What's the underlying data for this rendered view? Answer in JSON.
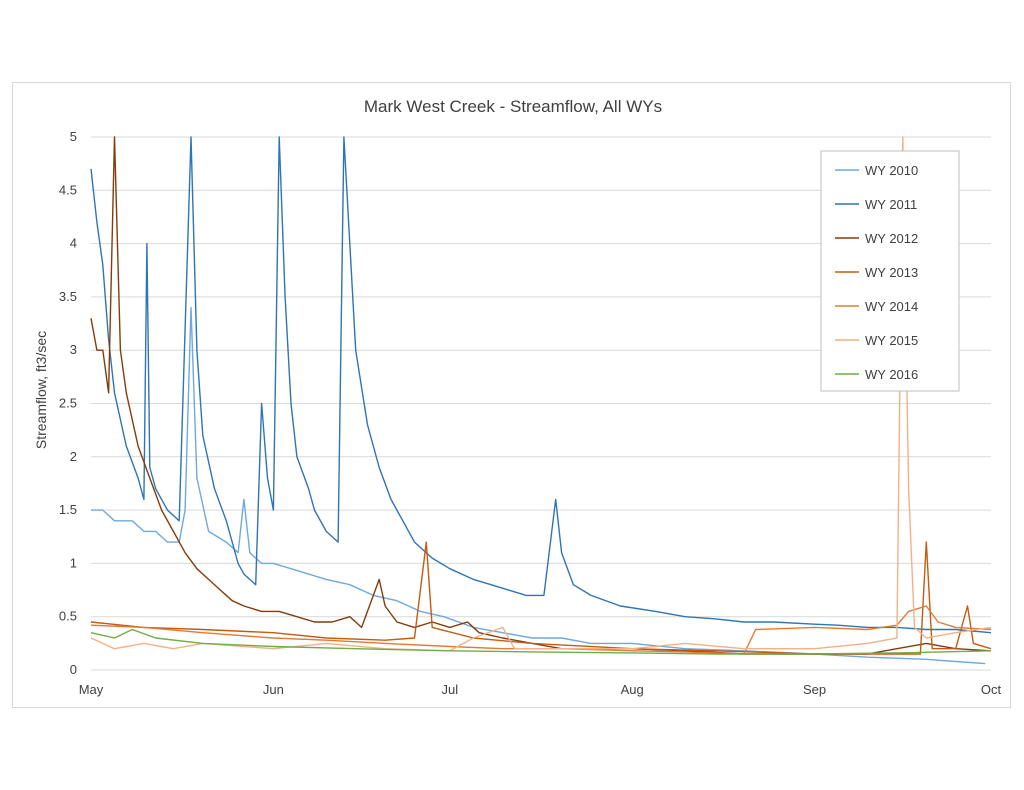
{
  "chart_data": {
    "type": "line",
    "title": "Mark West Creek - Streamflow, All WYs",
    "xlabel": "",
    "ylabel": "Streamflow, ft3/sec",
    "x_ticks": [
      "May",
      "Jun",
      "Jul",
      "Aug",
      "Sep",
      "Oct"
    ],
    "xlim": [
      "May 1",
      "Oct 1"
    ],
    "ylim": [
      0,
      5
    ],
    "y_ticks": [
      "0",
      "0.5",
      "1",
      "1.5",
      "2",
      "2.5",
      "3",
      "3.5",
      "4",
      "4.5",
      "5"
    ],
    "grid": true,
    "legend_position": "top-right",
    "series": [
      {
        "name": "WY 2010",
        "color": "#6fa8dc",
        "points": [
          [
            "May 1",
            1.5
          ],
          [
            "May 3",
            1.5
          ],
          [
            "May 5",
            1.4
          ],
          [
            "May 8",
            1.4
          ],
          [
            "May 10",
            1.3
          ],
          [
            "May 12",
            1.3
          ],
          [
            "May 14",
            1.2
          ],
          [
            "May 16",
            1.2
          ],
          [
            "May 17",
            1.5
          ],
          [
            "May 18",
            3.4
          ],
          [
            "May 19",
            1.8
          ],
          [
            "May 21",
            1.3
          ],
          [
            "May 24",
            1.2
          ],
          [
            "May 26",
            1.1
          ],
          [
            "May 27",
            1.6
          ],
          [
            "May 28",
            1.1
          ],
          [
            "May 30",
            1.0
          ],
          [
            "Jun 1",
            1.0
          ],
          [
            "Jun 4",
            0.95
          ],
          [
            "Jun 7",
            0.9
          ],
          [
            "Jun 10",
            0.85
          ],
          [
            "Jun 14",
            0.8
          ],
          [
            "Jun 18",
            0.7
          ],
          [
            "Jun 22",
            0.65
          ],
          [
            "Jun 26",
            0.55
          ],
          [
            "Jun 30",
            0.5
          ],
          [
            "Jul 5",
            0.4
          ],
          [
            "Jul 10",
            0.35
          ],
          [
            "Jul 15",
            0.3
          ],
          [
            "Jul 20",
            0.3
          ],
          [
            "Jul 25",
            0.25
          ],
          [
            "Aug 1",
            0.25
          ],
          [
            "Aug 10",
            0.2
          ],
          [
            "Aug 20",
            0.18
          ],
          [
            "Sep 1",
            0.15
          ],
          [
            "Sep 10",
            0.12
          ],
          [
            "Sep 20",
            0.1
          ],
          [
            "Sep 25",
            0.08
          ],
          [
            "Sep 30",
            0.06
          ]
        ]
      },
      {
        "name": "WY 2011",
        "color": "#2e75b6",
        "points": [
          [
            "May 1",
            4.7
          ],
          [
            "May 2",
            4.2
          ],
          [
            "May 3",
            3.8
          ],
          [
            "May 4",
            3.1
          ],
          [
            "May 5",
            2.6
          ],
          [
            "May 7",
            2.1
          ],
          [
            "May 9",
            1.8
          ],
          [
            "May 10",
            1.6
          ],
          [
            "May 10.5",
            4.0
          ],
          [
            "May 11",
            1.9
          ],
          [
            "May 12",
            1.7
          ],
          [
            "May 14",
            1.5
          ],
          [
            "May 16",
            1.4
          ],
          [
            "May 18",
            5.0
          ],
          [
            "May 19",
            3.0
          ],
          [
            "May 20",
            2.2
          ],
          [
            "May 22",
            1.7
          ],
          [
            "May 24",
            1.4
          ],
          [
            "May 25",
            1.2
          ],
          [
            "May 26",
            1.0
          ],
          [
            "May 27",
            0.9
          ],
          [
            "May 28",
            0.85
          ],
          [
            "May 29",
            0.8
          ],
          [
            "May 30",
            2.5
          ],
          [
            "May 31",
            1.8
          ],
          [
            "Jun 1",
            1.5
          ],
          [
            "Jun 2",
            5.0
          ],
          [
            "Jun 3",
            3.5
          ],
          [
            "Jun 4",
            2.5
          ],
          [
            "Jun 5",
            2.0
          ],
          [
            "Jun 7",
            1.7
          ],
          [
            "Jun 8",
            1.5
          ],
          [
            "Jun 10",
            1.3
          ],
          [
            "Jun 12",
            1.2
          ],
          [
            "Jun 13",
            5.0
          ],
          [
            "Jun 15",
            3.0
          ],
          [
            "Jun 17",
            2.3
          ],
          [
            "Jun 19",
            1.9
          ],
          [
            "Jun 21",
            1.6
          ],
          [
            "Jun 23",
            1.4
          ],
          [
            "Jun 25",
            1.2
          ],
          [
            "Jun 28",
            1.05
          ],
          [
            "Jul 1",
            0.95
          ],
          [
            "Jul 5",
            0.85
          ],
          [
            "Jul 8",
            0.8
          ],
          [
            "Jul 11",
            0.75
          ],
          [
            "Jul 14",
            0.7
          ],
          [
            "Jul 17",
            0.7
          ],
          [
            "Jul 19",
            1.6
          ],
          [
            "Jul 20",
            1.1
          ],
          [
            "Jul 22",
            0.8
          ],
          [
            "Jul 25",
            0.7
          ],
          [
            "Jul 30",
            0.6
          ],
          [
            "Aug 5",
            0.55
          ],
          [
            "Aug 10",
            0.5
          ],
          [
            "Aug 15",
            0.48
          ],
          [
            "Aug 20",
            0.45
          ],
          [
            "Aug 25",
            0.45
          ],
          [
            "Sep 1",
            0.43
          ],
          [
            "Sep 5",
            0.42
          ],
          [
            "Sep 10",
            0.4
          ],
          [
            "Sep 15",
            0.4
          ],
          [
            "Sep 20",
            0.38
          ],
          [
            "Sep 25",
            0.38
          ],
          [
            "Oct 1",
            0.35
          ]
        ]
      },
      {
        "name": "WY 2012",
        "color": "#843c0c",
        "points": [
          [
            "May 1",
            3.3
          ],
          [
            "May 2",
            3.0
          ],
          [
            "May 3",
            3.0
          ],
          [
            "May 4",
            2.6
          ],
          [
            "May 5",
            5.0
          ],
          [
            "May 6",
            3.0
          ],
          [
            "May 7",
            2.6
          ],
          [
            "May 9",
            2.1
          ],
          [
            "May 11",
            1.8
          ],
          [
            "May 13",
            1.5
          ],
          [
            "May 15",
            1.3
          ],
          [
            "May 17",
            1.1
          ],
          [
            "May 19",
            0.95
          ],
          [
            "May 21",
            0.85
          ],
          [
            "May 23",
            0.75
          ],
          [
            "May 25",
            0.65
          ],
          [
            "May 27",
            0.6
          ],
          [
            "May 30",
            0.55
          ],
          [
            "Jun 2",
            0.55
          ],
          [
            "Jun 5",
            0.5
          ],
          [
            "Jun 8",
            0.45
          ],
          [
            "Jun 11",
            0.45
          ],
          [
            "Jun 14",
            0.5
          ],
          [
            "Jun 16",
            0.4
          ],
          [
            "Jun 19",
            0.85
          ],
          [
            "Jun 20",
            0.6
          ],
          [
            "Jun 22",
            0.45
          ],
          [
            "Jun 25",
            0.4
          ],
          [
            "Jun 28",
            0.45
          ],
          [
            "Jul 1",
            0.4
          ],
          [
            "Jul 4",
            0.45
          ],
          [
            "Jul 6",
            0.35
          ],
          [
            "Jul 10",
            0.3
          ],
          [
            "Jul 15",
            0.25
          ],
          [
            "Jul 20",
            0.2
          ],
          [
            "Aug 1",
            0.2
          ],
          [
            "Aug 10",
            0.18
          ],
          [
            "Aug 20",
            0.15
          ],
          [
            "Sep 1",
            0.15
          ],
          [
            "Sep 10",
            0.15
          ],
          [
            "Sep 15",
            0.2
          ],
          [
            "Sep 20",
            0.25
          ],
          [
            "Sep 25",
            0.2
          ],
          [
            "Oct 1",
            0.18
          ]
        ]
      },
      {
        "name": "WY 2013",
        "color": "#c55a11",
        "points": [
          [
            "May 1",
            0.45
          ],
          [
            "May 10",
            0.4
          ],
          [
            "May 20",
            0.38
          ],
          [
            "Jun 1",
            0.35
          ],
          [
            "Jun 10",
            0.3
          ],
          [
            "Jun 20",
            0.28
          ],
          [
            "Jun 25",
            0.3
          ],
          [
            "Jun 27",
            1.2
          ],
          [
            "Jun 28",
            0.4
          ],
          [
            "Jul 5",
            0.3
          ],
          [
            "Jul 15",
            0.25
          ],
          [
            "Aug 1",
            0.2
          ],
          [
            "Aug 15",
            0.18
          ],
          [
            "Sep 1",
            0.15
          ],
          [
            "Sep 10",
            0.15
          ],
          [
            "Sep 15",
            0.15
          ],
          [
            "Sep 19",
            0.15
          ],
          [
            "Sep 20",
            1.2
          ],
          [
            "Sep 21",
            0.2
          ],
          [
            "Sep 25",
            0.2
          ],
          [
            "Sep 27",
            0.6
          ],
          [
            "Sep 28",
            0.25
          ],
          [
            "Oct 1",
            0.2
          ]
        ]
      },
      {
        "name": "WY 2014",
        "color": "#e07b39",
        "points": [
          [
            "May 1",
            0.42
          ],
          [
            "May 10",
            0.4
          ],
          [
            "May 20",
            0.35
          ],
          [
            "Jun 1",
            0.3
          ],
          [
            "Jun 10",
            0.28
          ],
          [
            "Jun 20",
            0.25
          ],
          [
            "Jul 1",
            0.22
          ],
          [
            "Jul 10",
            0.2
          ],
          [
            "Jul 20",
            0.2
          ],
          [
            "Aug 1",
            0.18
          ],
          [
            "Aug 10",
            0.17
          ],
          [
            "Aug 20",
            0.15
          ],
          [
            "Aug 22",
            0.38
          ],
          [
            "Sep 1",
            0.4
          ],
          [
            "Sep 10",
            0.38
          ],
          [
            "Sep 15",
            0.42
          ],
          [
            "Sep 17",
            0.55
          ],
          [
            "Sep 20",
            0.6
          ],
          [
            "Sep 22",
            0.45
          ],
          [
            "Sep 25",
            0.4
          ],
          [
            "Oct 1",
            0.38
          ]
        ]
      },
      {
        "name": "WY 2015",
        "color": "#f4b183",
        "points": [
          [
            "May 1",
            0.3
          ],
          [
            "May 5",
            0.2
          ],
          [
            "May 10",
            0.25
          ],
          [
            "May 15",
            0.2
          ],
          [
            "May 20",
            0.25
          ],
          [
            "Jun 1",
            0.2
          ],
          [
            "Jun 10",
            0.25
          ],
          [
            "Jun 20",
            0.2
          ],
          [
            "Jul 1",
            0.18
          ],
          [
            "Jul 5",
            0.3
          ],
          [
            "Jul 10",
            0.4
          ],
          [
            "Jul 12",
            0.2
          ],
          [
            "Aug 1",
            0.2
          ],
          [
            "Aug 10",
            0.25
          ],
          [
            "Aug 20",
            0.2
          ],
          [
            "Sep 1",
            0.2
          ],
          [
            "Sep 10",
            0.25
          ],
          [
            "Sep 15",
            0.3
          ],
          [
            "Sep 16",
            5.0
          ],
          [
            "Sep 17",
            1.7
          ],
          [
            "Sep 18",
            0.4
          ],
          [
            "Sep 20",
            0.3
          ],
          [
            "Sep 25",
            0.35
          ],
          [
            "Oct 1",
            0.4
          ]
        ]
      },
      {
        "name": "WY 2016",
        "color": "#70ad47",
        "points": [
          [
            "May 1",
            0.35
          ],
          [
            "May 5",
            0.3
          ],
          [
            "May 8",
            0.38
          ],
          [
            "May 12",
            0.3
          ],
          [
            "May 20",
            0.25
          ],
          [
            "Jun 1",
            0.22
          ],
          [
            "Jun 15",
            0.2
          ],
          [
            "Jul 1",
            0.18
          ],
          [
            "Jul 15",
            0.17
          ],
          [
            "Aug 1",
            0.16
          ],
          [
            "Aug 15",
            0.15
          ],
          [
            "Sep 1",
            0.15
          ],
          [
            "Sep 15",
            0.16
          ],
          [
            "Oct 1",
            0.18
          ]
        ]
      }
    ]
  }
}
